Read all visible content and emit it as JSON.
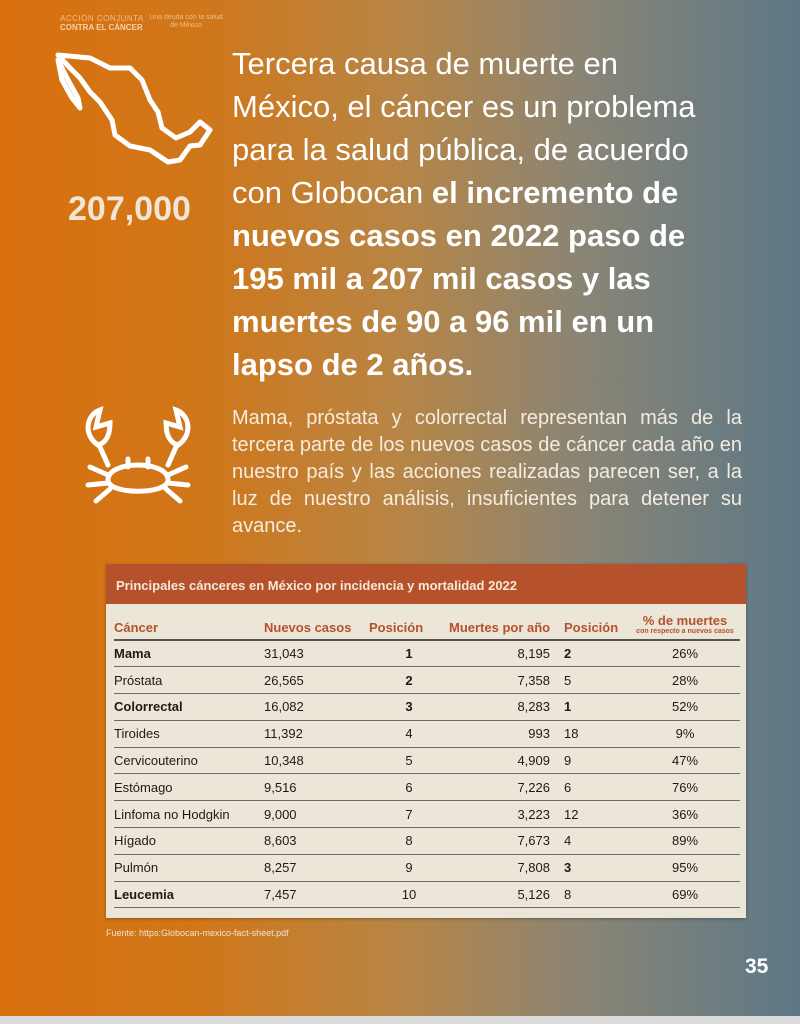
{
  "logo": {
    "line1": "ACCIÓN CONJUNTA",
    "line2": "CONTRA EL CÁNCER",
    "tagline": "Una deuda con la salud de México"
  },
  "stat": "207,000",
  "intro": {
    "normal": "Tercera causa de muerte en México, el cáncer es un problema para la salud pública, de acuerdo con Globocan ",
    "bold": "el incremento de nuevos casos en 2022 paso de 195 mil a 207 mil casos y las muertes de 90 a 96 mil en un lapso de 2 años."
  },
  "paragraph": "Mama, próstata y colorrectal representan más de la tercera parte de los nuevos casos de cáncer cada año en nuestro país y las acciones realizadas parecen ser, a la luz de nuestro análisis, insuficientes para detener su avance.",
  "table": {
    "title": "Principales cánceres en México por incidencia y mortalidad 2022",
    "headers": [
      "Cáncer",
      "Nuevos casos",
      "Posición",
      "Muertes por año",
      "Posición",
      "% de muertes"
    ],
    "header_sub": "con respecto a nuevos casos",
    "rows": [
      {
        "name": "Mama",
        "cases": "31,043",
        "pos1": "1",
        "deaths": "8,195",
        "pos2": "2",
        "pct": "26%",
        "b": [
          1,
          1,
          1
        ]
      },
      {
        "name": "Próstata",
        "cases": "26,565",
        "pos1": "2",
        "deaths": "7,358",
        "pos2": "5",
        "pct": "28%",
        "b": [
          0,
          1,
          0
        ]
      },
      {
        "name": "Colorrectal",
        "cases": "16,082",
        "pos1": "3",
        "deaths": "8,283",
        "pos2": "1",
        "pct": "52%",
        "b": [
          1,
          1,
          1
        ]
      },
      {
        "name": "Tiroides",
        "cases": "11,392",
        "pos1": "4",
        "deaths": "993",
        "pos2": "18",
        "pct": "9%",
        "b": [
          0,
          0,
          0
        ]
      },
      {
        "name": "Cervicouterino",
        "cases": "10,348",
        "pos1": "5",
        "deaths": "4,909",
        "pos2": "9",
        "pct": "47%",
        "b": [
          0,
          0,
          0
        ]
      },
      {
        "name": "Estómago",
        "cases": "9,516",
        "pos1": "6",
        "deaths": "7,226",
        "pos2": "6",
        "pct": "76%",
        "b": [
          0,
          0,
          0
        ]
      },
      {
        "name": "Linfoma no Hodgkin",
        "cases": "9,000",
        "pos1": "7",
        "deaths": "3,223",
        "pos2": "12",
        "pct": "36%",
        "b": [
          0,
          0,
          0
        ]
      },
      {
        "name": "Hígado",
        "cases": "8,603",
        "pos1": "8",
        "deaths": "7,673",
        "pos2": "4",
        "pct": "89%",
        "b": [
          0,
          0,
          0
        ]
      },
      {
        "name": "Pulmón",
        "cases": "8,257",
        "pos1": "9",
        "deaths": "7,808",
        "pos2": "3",
        "pct": "95%",
        "b": [
          0,
          0,
          1
        ]
      },
      {
        "name": "Leucemia",
        "cases": "7,457",
        "pos1": "10",
        "deaths": "5,126",
        "pos2": "8",
        "pct": "69%",
        "b": [
          1,
          0,
          0
        ]
      }
    ]
  },
  "source": "Fuente: https:Globocan-mexico-fact-sheet.pdf",
  "page_number": "35"
}
